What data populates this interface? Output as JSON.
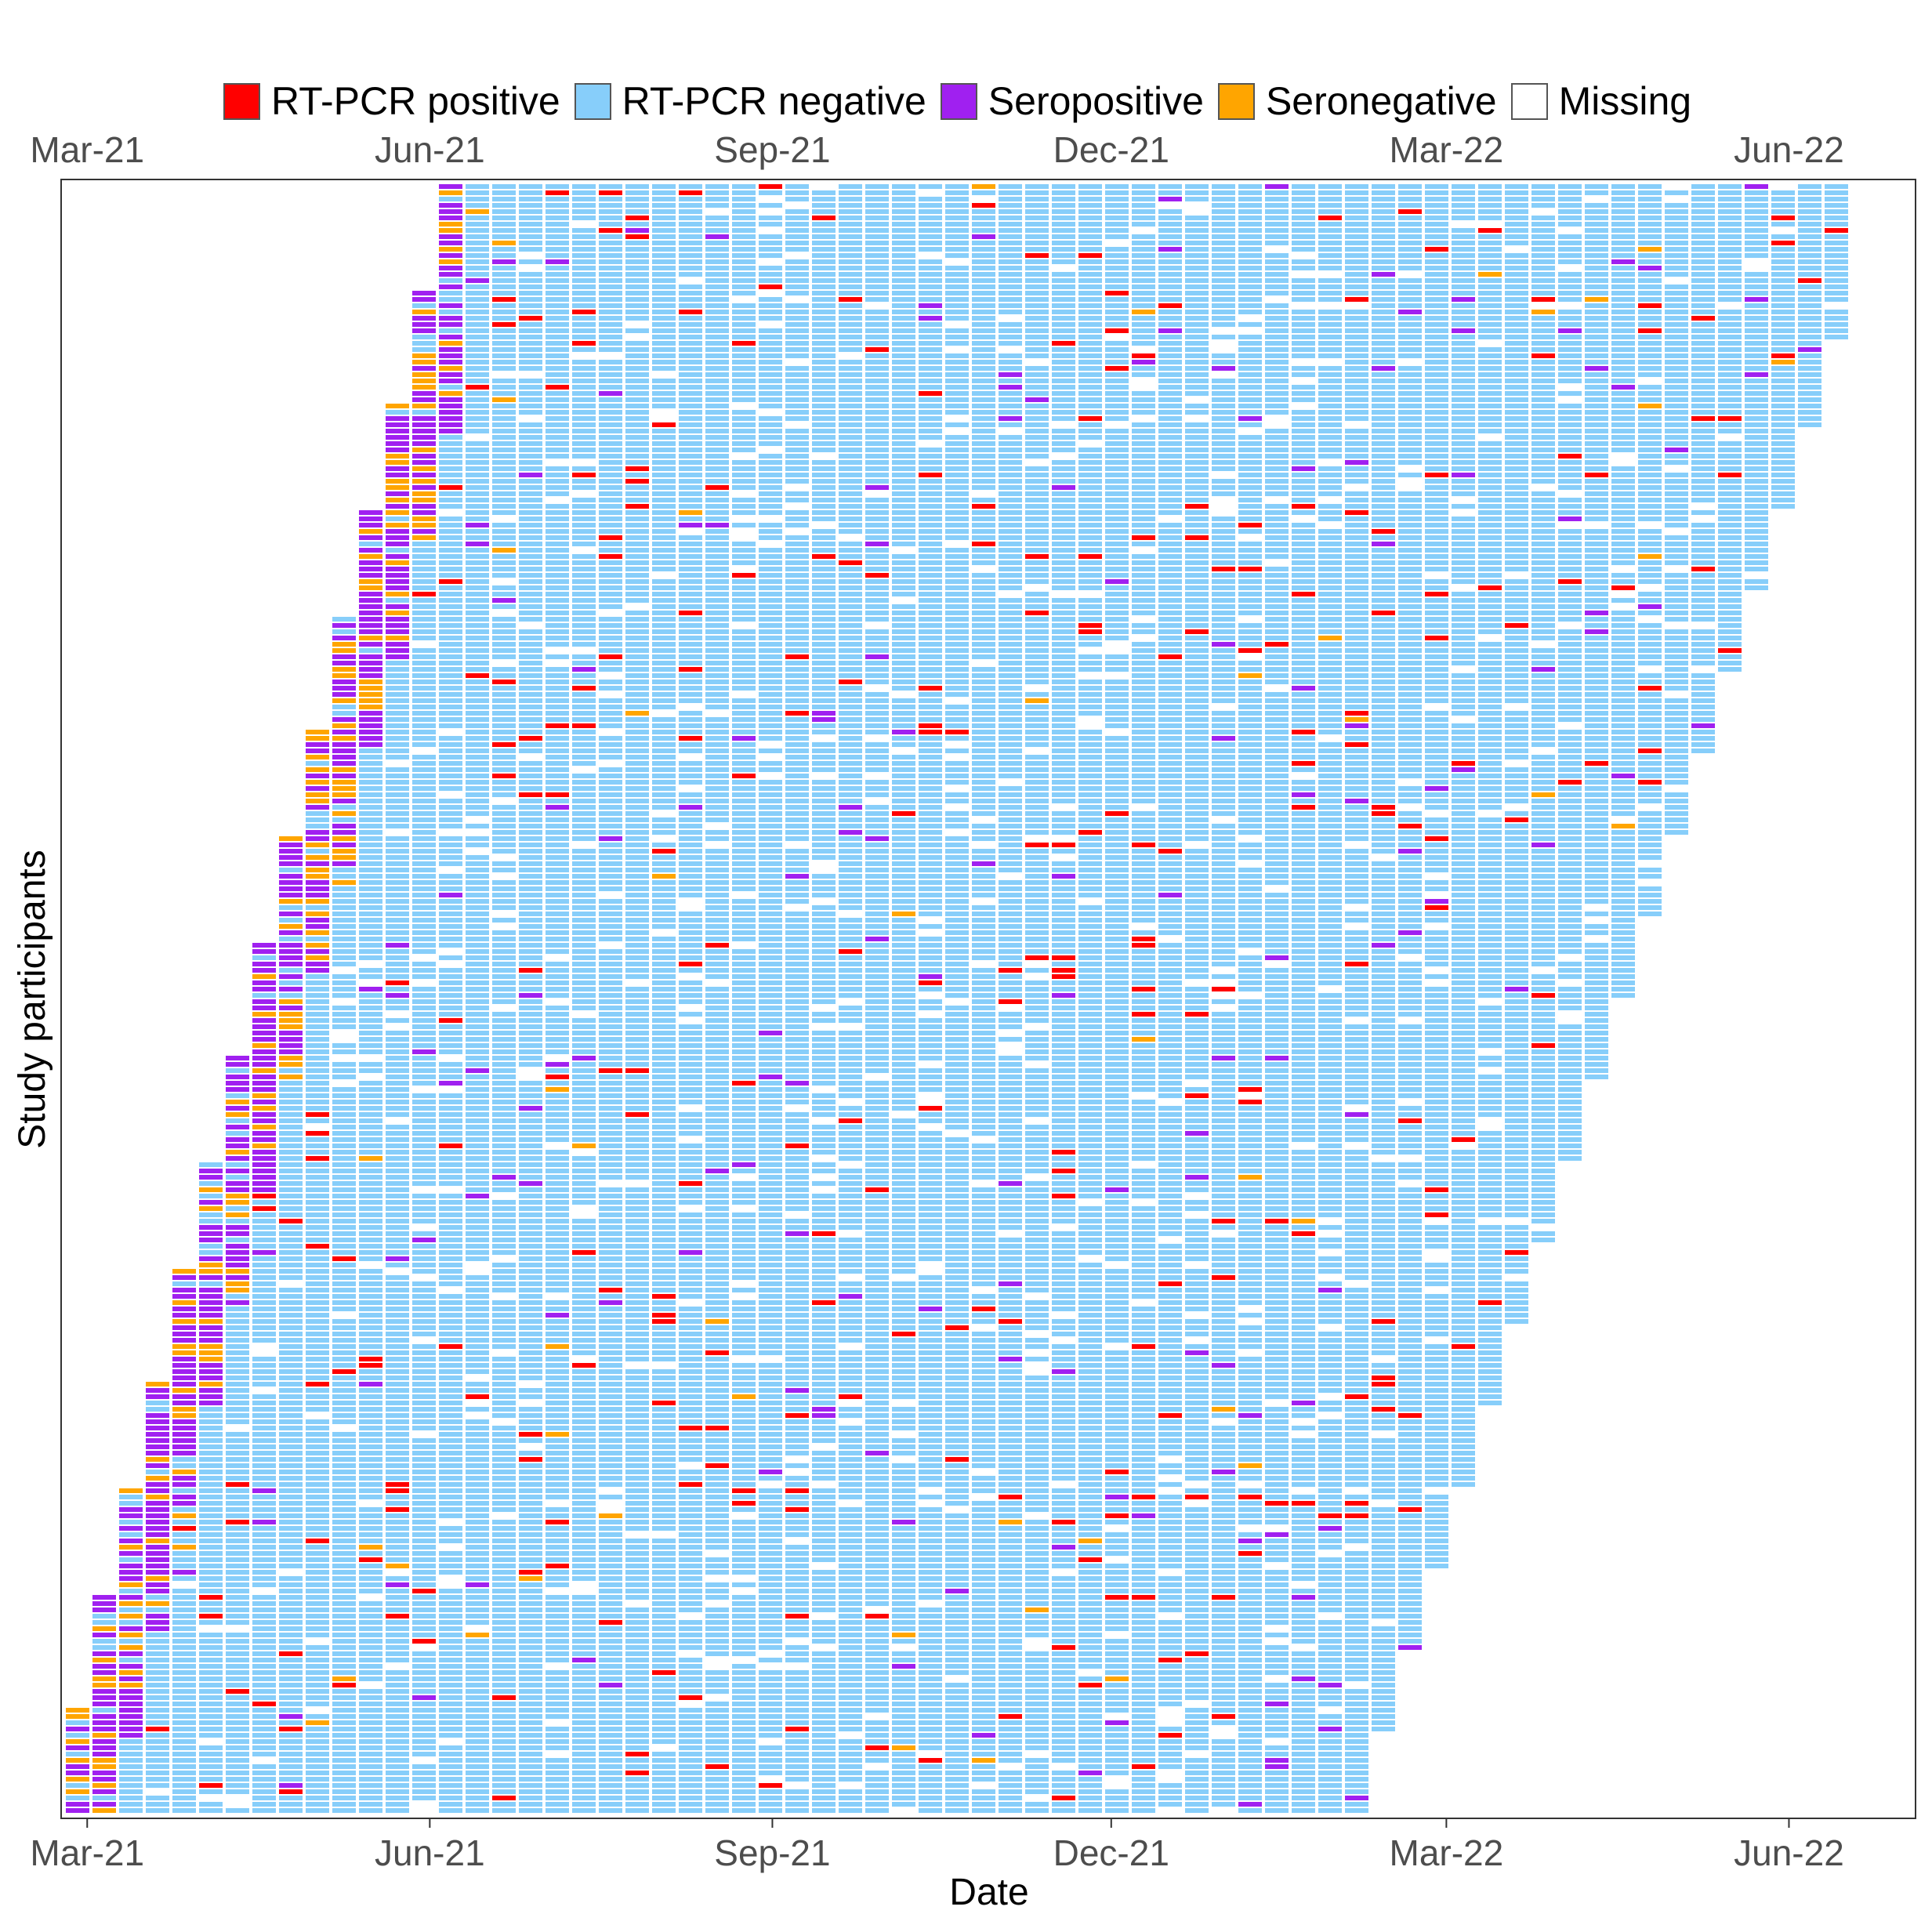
{
  "chart_data": {
    "type": "heatmap",
    "title": "",
    "xlabel": "Date",
    "ylabel": "Study participants",
    "x_ticks": [
      "Mar-21",
      "Jun-21",
      "Sep-21",
      "Dec-21",
      "Mar-22",
      "Jun-22"
    ],
    "x_range": [
      "2021-02-22",
      "2022-07-05"
    ],
    "legend_position": "top",
    "categories": [
      {
        "key": "pos",
        "label": "RT-PCR positive",
        "color": "#ff0000"
      },
      {
        "key": "neg",
        "label": "RT-PCR negative",
        "color": "#87cefa"
      },
      {
        "key": "sp",
        "label": "Seropositive",
        "color": "#a020f0"
      },
      {
        "key": "sn",
        "label": "Seronegative",
        "color": "#ffa500"
      },
      {
        "key": "miss",
        "label": "Missing",
        "color": "#ffffff"
      }
    ],
    "grid": false
  }
}
